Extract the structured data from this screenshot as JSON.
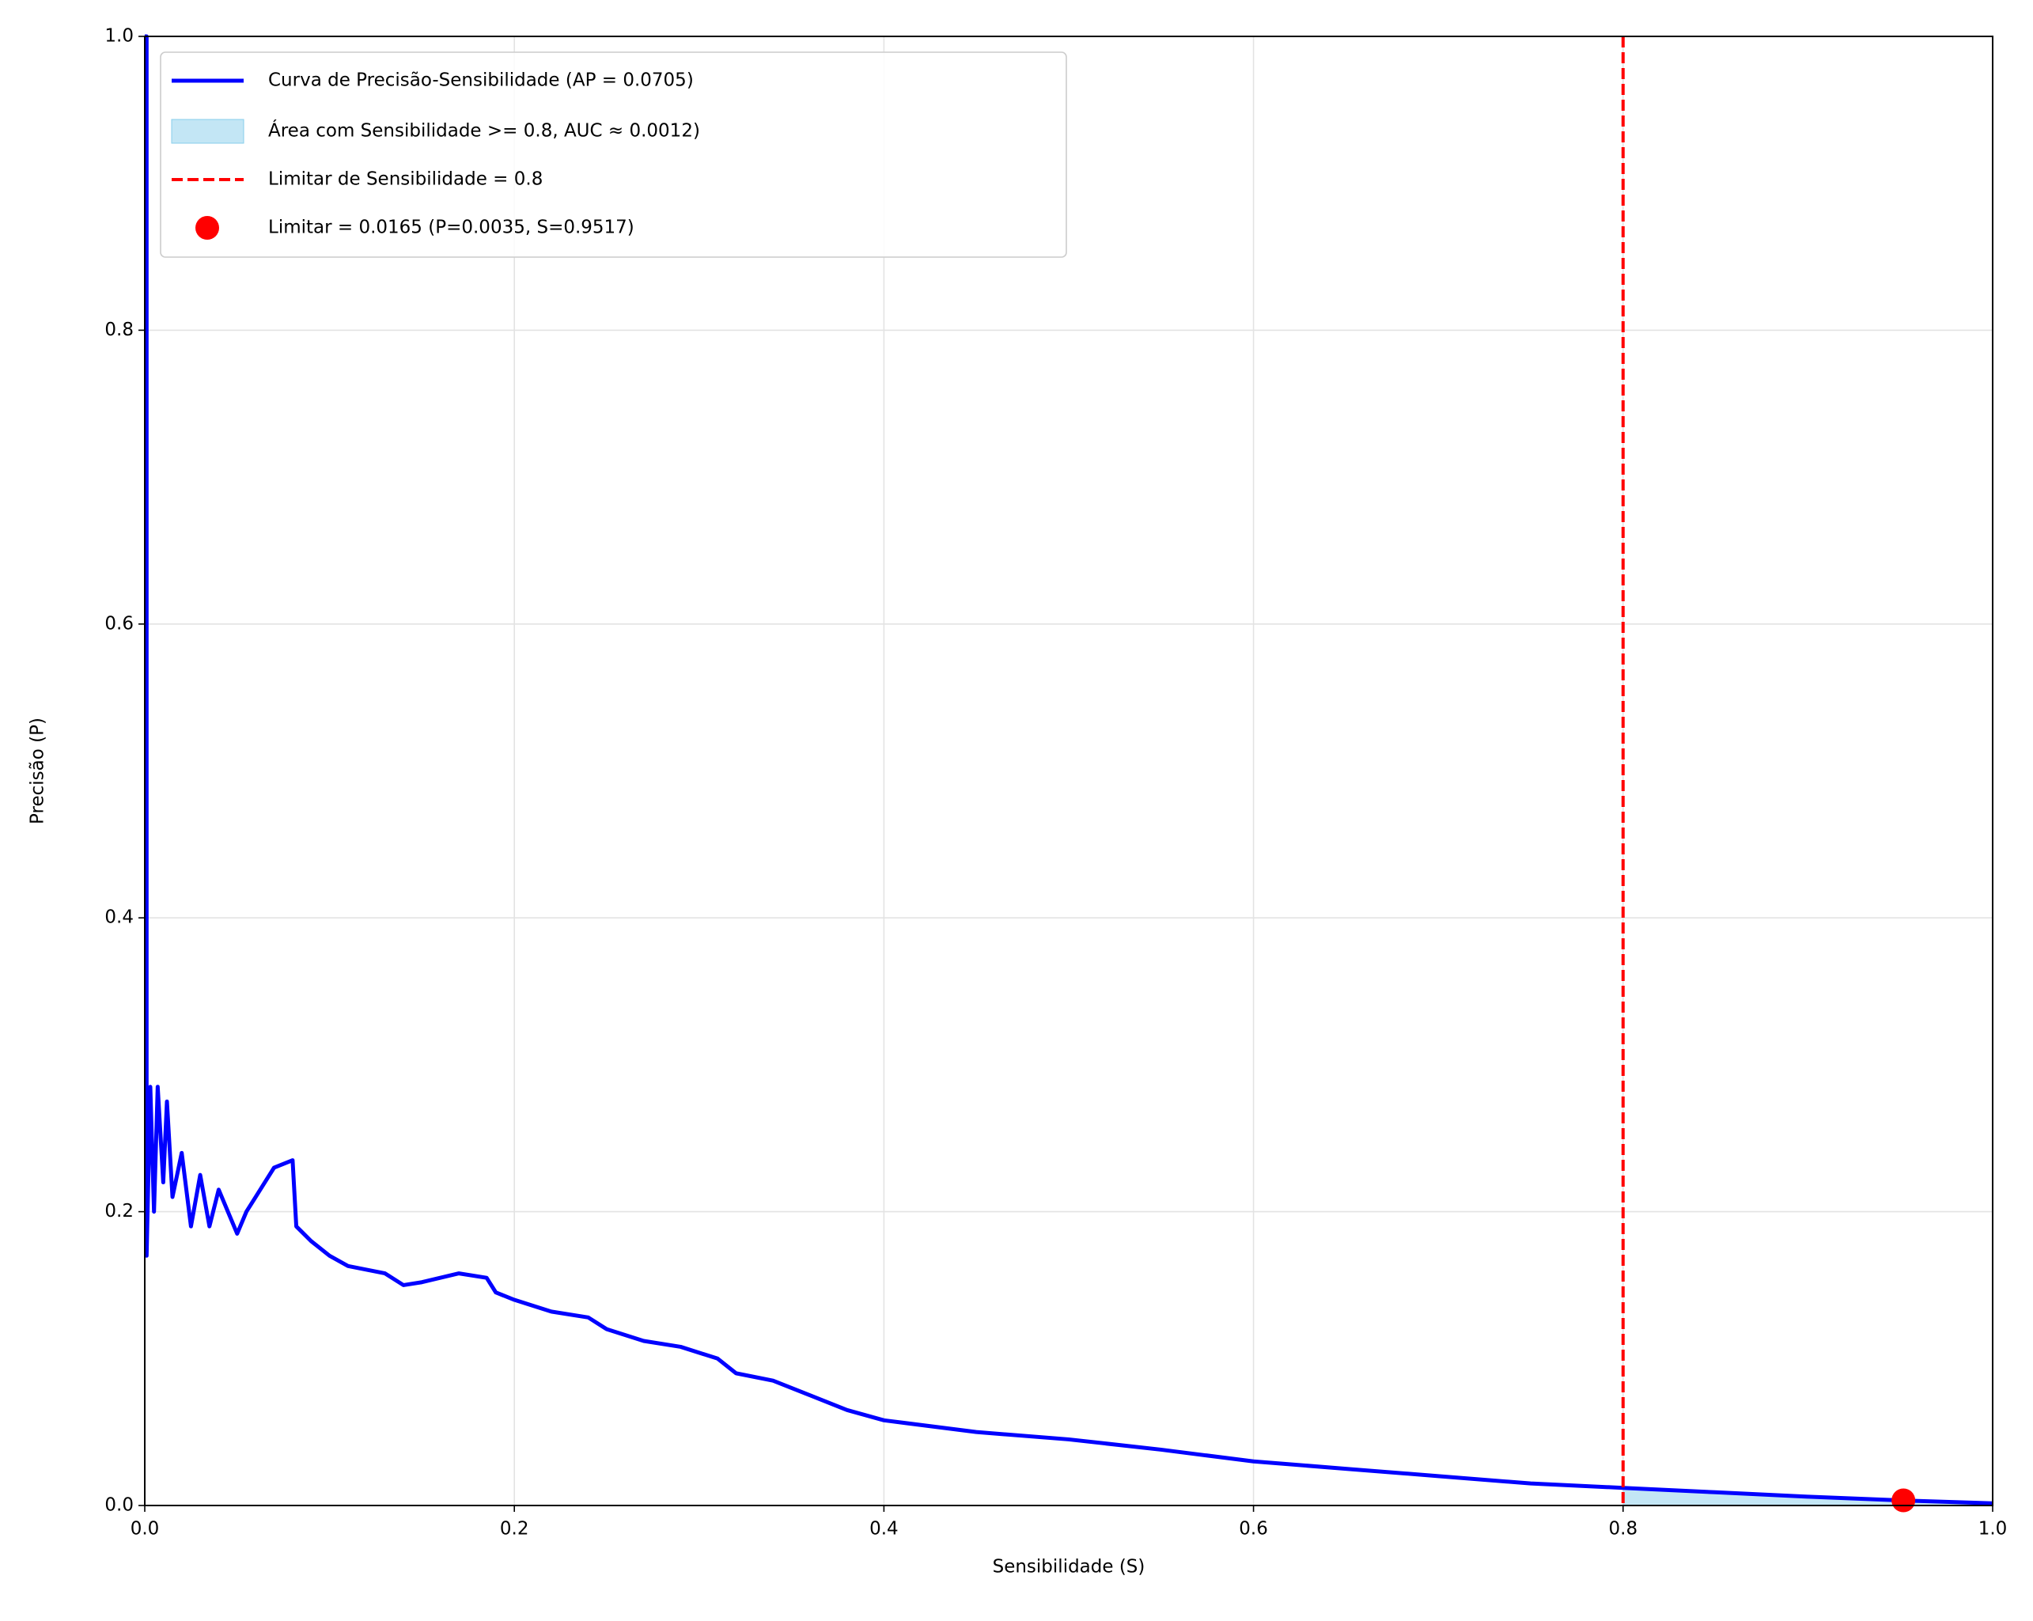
{
  "chart_data": {
    "type": "line",
    "xlabel": "Sensibilidade (S)",
    "ylabel": "Precisão (P)",
    "xlim": [
      0,
      1
    ],
    "ylim": [
      0,
      1
    ],
    "xticks": [
      {
        "value": 0,
        "label": "0.0"
      },
      0.2,
      0.4,
      0.6,
      0.8,
      {
        "value": 1,
        "label": "1.0"
      }
    ],
    "yticks": [
      {
        "value": 0,
        "label": "0.0"
      },
      0.2,
      0.4,
      0.6,
      0.8,
      {
        "value": 1,
        "label": "1.0"
      }
    ],
    "grid": true,
    "legend": "upper left",
    "series": [
      {
        "name": "Curva de Precisão-Sensibilidade (AP = 0.0705)",
        "color": "#0000ff",
        "x": [
          0,
          0.001,
          0.001,
          0.003,
          0.005,
          0.007,
          0.01,
          0.012,
          0.015,
          0.02,
          0.025,
          0.03,
          0.035,
          0.04,
          0.045,
          0.05,
          0.055,
          0.06,
          0.065,
          0.07,
          0.08,
          0.082,
          0.09,
          0.1,
          0.11,
          0.13,
          0.14,
          0.15,
          0.17,
          0.185,
          0.19,
          0.2,
          0.22,
          0.24,
          0.25,
          0.27,
          0.29,
          0.31,
          0.32,
          0.34,
          0.36,
          0.38,
          0.4,
          0.45,
          0.5,
          0.55,
          0.6,
          0.65,
          0.7,
          0.75,
          0.8,
          0.85,
          0.9,
          0.95,
          1
        ],
        "values": [
          1,
          1,
          0.17,
          0.285,
          0.2,
          0.285,
          0.22,
          0.275,
          0.21,
          0.24,
          0.19,
          0.225,
          0.19,
          0.215,
          0.2,
          0.185,
          0.2,
          0.21,
          0.22,
          0.23,
          0.235,
          0.19,
          0.18,
          0.17,
          0.163,
          0.158,
          0.15,
          0.152,
          0.158,
          0.155,
          0.145,
          0.14,
          0.132,
          0.128,
          0.12,
          0.112,
          0.108,
          0.1,
          0.09,
          0.085,
          0.075,
          0.065,
          0.058,
          0.05,
          0.045,
          0.038,
          0.03,
          0.025,
          0.02,
          0.015,
          0.012,
          0.009,
          0.006,
          0.0035,
          0.0015
        ]
      }
    ],
    "fill": {
      "name": "Área com Sensibilidade >= 0.8, AUC ≈ 0.0012)",
      "color": "#87ceeb",
      "xmin": 0.8
    },
    "vline": {
      "name": "Limitar de Sensibilidade = 0.8",
      "color": "#ff0000",
      "value": 0.8
    },
    "point": {
      "name": "Limitar = 0.0165 (P=0.0035, S=0.9517)",
      "color": "#ff0000",
      "x": 0.9517,
      "y": 0.0035
    }
  }
}
